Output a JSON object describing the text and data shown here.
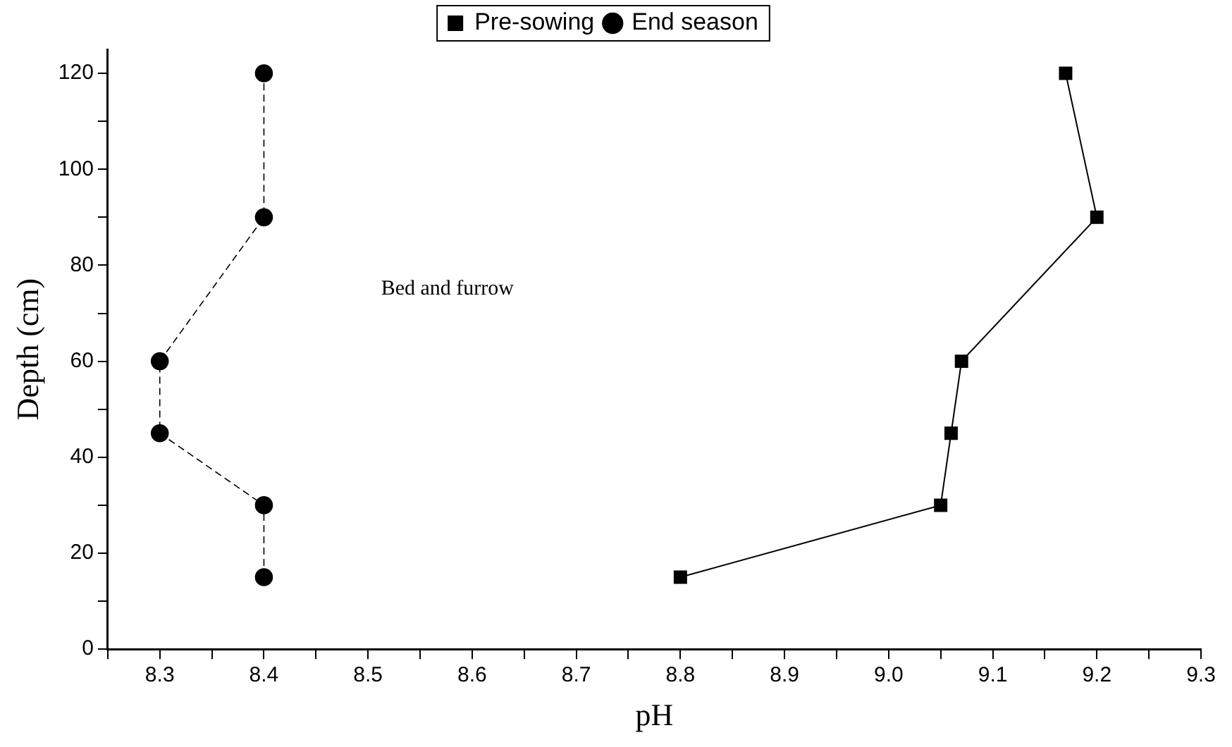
{
  "chart_data": {
    "type": "line",
    "xlabel": "pH",
    "ylabel": "Depth (cm)",
    "annotations": [
      "Bed and furrow"
    ],
    "xlim": [
      8.25,
      9.3
    ],
    "xticks": [
      {
        "value": 8.25,
        "label": null
      },
      8.3,
      {
        "value": 8.35,
        "label": null
      },
      8.4,
      {
        "value": 8.45,
        "label": null
      },
      8.5,
      {
        "value": 8.55,
        "label": null
      },
      8.6,
      {
        "value": 8.65,
        "label": null
      },
      8.7,
      {
        "value": 8.75,
        "label": null
      },
      8.8,
      {
        "value": 8.85,
        "label": null
      },
      8.9,
      {
        "value": 8.95,
        "label": null
      },
      {
        "value": 9,
        "label": "9.0"
      },
      {
        "value": 9.05,
        "label": null
      },
      9.1,
      {
        "value": 9.15,
        "label": null
      },
      9.2,
      {
        "value": 9.25,
        "label": null
      },
      9.3
    ],
    "ylim": [
      0,
      125
    ],
    "yticks": [
      0,
      {
        "value": 10,
        "label": null
      },
      20,
      {
        "value": 30,
        "label": null
      },
      40,
      {
        "value": 50,
        "label": null
      },
      60,
      {
        "value": 70,
        "label": null
      },
      80,
      {
        "value": 90,
        "label": null
      },
      100,
      {
        "value": 110,
        "label": null
      },
      120
    ],
    "grid": false,
    "legend": "top",
    "series": [
      {
        "name": "Pre-sowing",
        "color": "#000000",
        "marker": "square",
        "line_style": "solid",
        "x": [
          8.8,
          9.05,
          9.06,
          9.07,
          9.2,
          9.17
        ],
        "values": [
          15,
          30,
          45,
          60,
          90,
          120
        ]
      },
      {
        "name": "End season",
        "color": "#000000",
        "marker": "circle",
        "line_style": "dashed",
        "x": [
          8.4,
          8.4,
          8.3,
          8.3,
          8.4,
          8.4
        ],
        "values": [
          15,
          30,
          45,
          60,
          90,
          120
        ]
      }
    ]
  }
}
